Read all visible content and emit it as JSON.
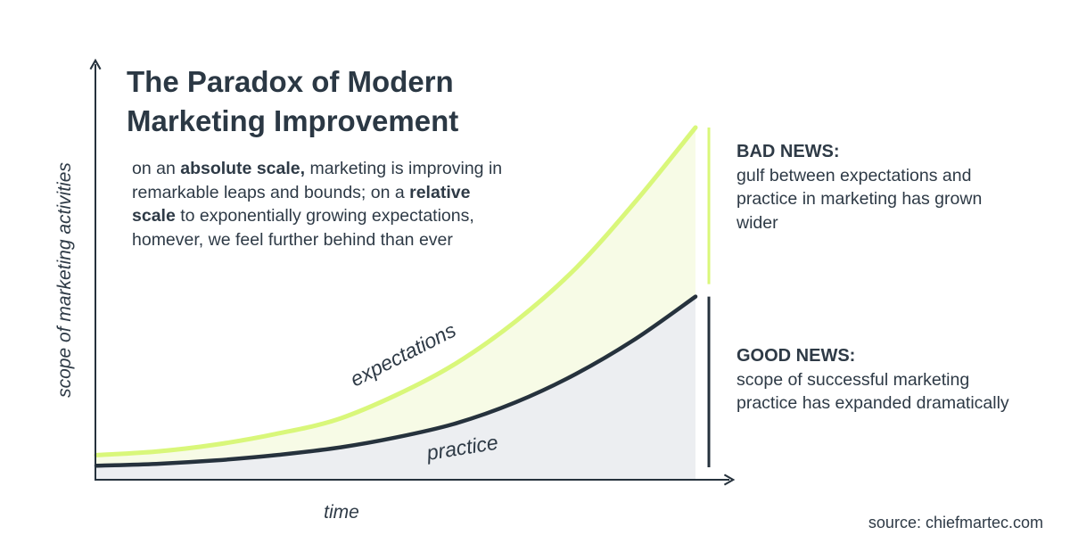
{
  "title": {
    "line1": "The Paradox of Modern",
    "line2": "Marketing Improvement"
  },
  "description": {
    "p1": "on an ",
    "b1": "absolute scale,",
    "p2": " marketing is improving in remarkable leaps and bounds; on a ",
    "b2": "relative scale",
    "p3": " to exponentially growing expectations, homever, we feel further behind than ever"
  },
  "bad_news": {
    "head": "BAD NEWS:",
    "body": "gulf between expectations and practice in marketing has grown wider"
  },
  "good_news": {
    "head": "GOOD NEWS:",
    "body": "scope of successful marketing practice has expanded dramatically"
  },
  "source": "source: chiefmartec.com",
  "colors": {
    "expectations_line": "#d9f77a",
    "expectations_fill": "#f7fbe6",
    "practice_line": "#26323d",
    "practice_fill": "#eceef1",
    "axis": "#26323d",
    "text": "#2e3a46"
  },
  "chart_data": {
    "type": "area",
    "title": "The Paradox of Modern Marketing Improvement",
    "xlabel": "time",
    "ylabel": "scope of marketing activities",
    "x_ticks": false,
    "y_ticks": false,
    "grid": false,
    "xlim": [
      0,
      1
    ],
    "ylim": [
      0,
      1
    ],
    "x": [
      0,
      0.1,
      0.2,
      0.3,
      0.4,
      0.5,
      0.6,
      0.7,
      0.8,
      0.9,
      1.0
    ],
    "series": [
      {
        "name": "expectations",
        "values": [
          0.07,
          0.08,
          0.1,
          0.13,
          0.17,
          0.24,
          0.33,
          0.45,
          0.6,
          0.79,
          1.0
        ]
      },
      {
        "name": "practice",
        "values": [
          0.04,
          0.045,
          0.055,
          0.07,
          0.09,
          0.12,
          0.16,
          0.22,
          0.3,
          0.4,
          0.52
        ]
      }
    ],
    "annotations": [
      {
        "target": "gap",
        "text": "BAD NEWS:"
      },
      {
        "target": "practice",
        "text": "GOOD NEWS:"
      }
    ]
  }
}
